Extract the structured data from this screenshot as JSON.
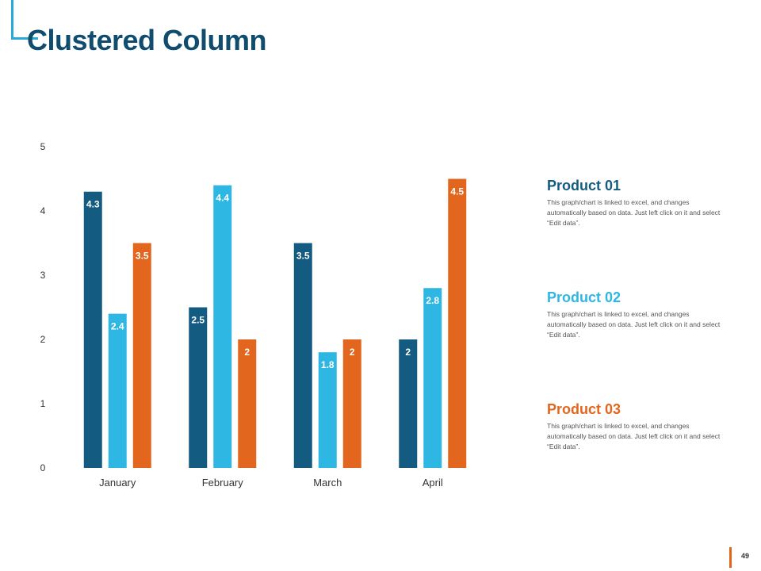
{
  "page": {
    "title": "Clustered Column",
    "page_number": "49"
  },
  "colors": {
    "title": "#0f4c6e",
    "accent_bracket": "#2aa9d8",
    "footer_bracket": "#e1661d"
  },
  "chart_data": {
    "type": "bar",
    "title": "",
    "xlabel": "",
    "ylabel": "",
    "categories": [
      "January",
      "February",
      "March",
      "April"
    ],
    "ylim": [
      0,
      5
    ],
    "yticks": [
      0,
      1,
      2,
      3,
      4,
      5
    ],
    "grid": false,
    "legend_placement": "right",
    "series": [
      {
        "name": "Product 01",
        "color": "#145b82",
        "values": [
          4.3,
          2.5,
          3.5,
          2
        ]
      },
      {
        "name": "Product 02",
        "color": "#2db7e2",
        "values": [
          2.4,
          4.4,
          1.8,
          2.8
        ]
      },
      {
        "name": "Product 03",
        "color": "#e2661e",
        "values": [
          3.5,
          2,
          2,
          4.5
        ]
      }
    ]
  },
  "legend": [
    {
      "title": "Product 01",
      "color": "#145b82",
      "description": "This graph/chart is linked to excel, and changes automatically based on data. Just left click on it and select “Edit data”."
    },
    {
      "title": "Product 02",
      "color": "#2db7e2",
      "description": "This graph/chart is linked to excel, and changes automatically based on data. Just left click on it and select “Edit data”."
    },
    {
      "title": "Product 03",
      "color": "#e2661e",
      "description": "This graph/chart is linked to excel, and changes automatically based on data. Just left click on it and select “Edit data”."
    }
  ]
}
